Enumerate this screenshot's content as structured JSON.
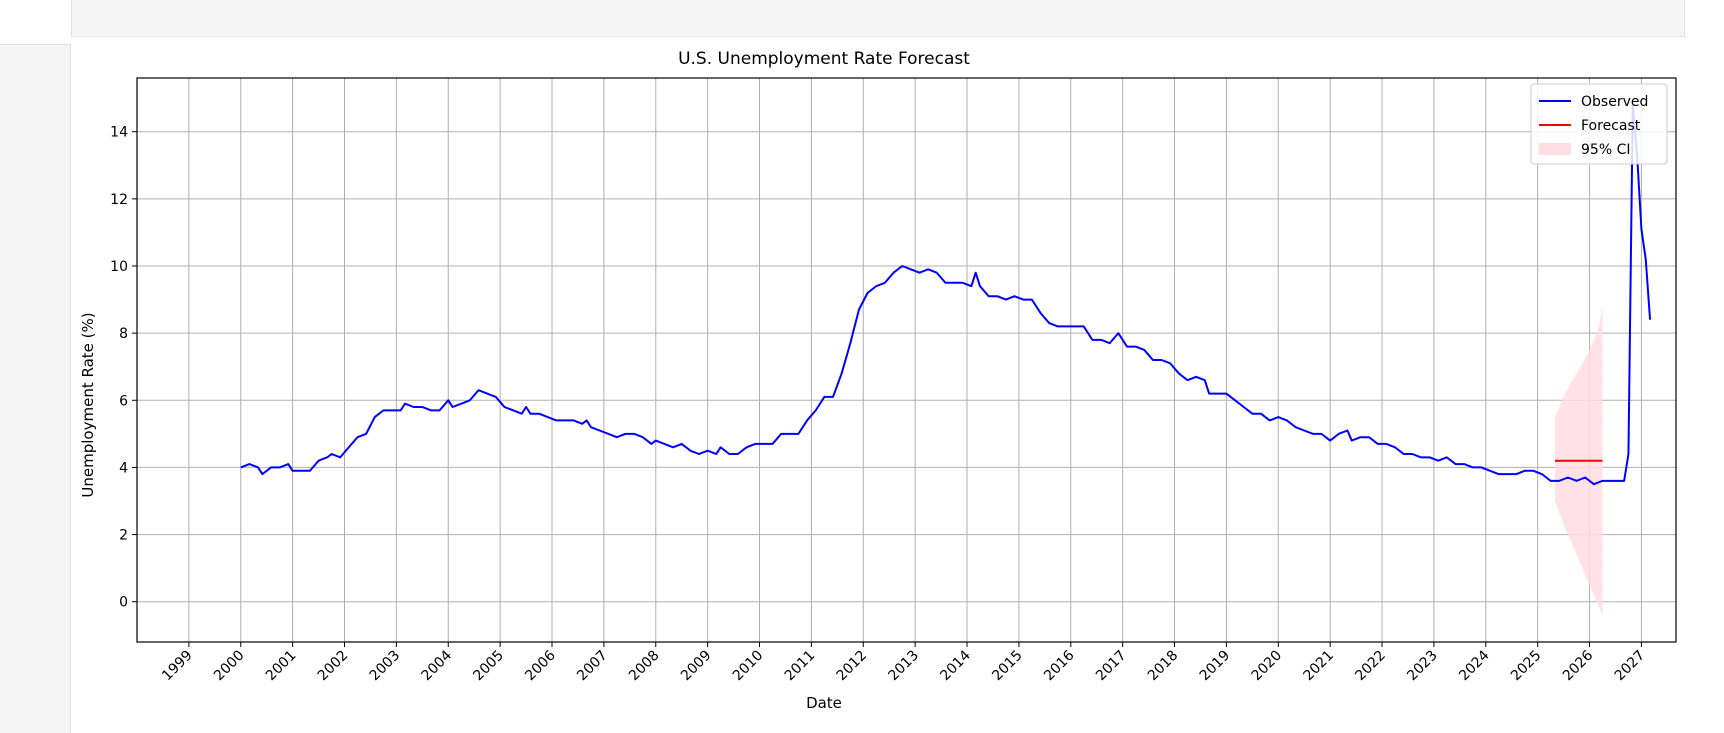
{
  "chart_data": {
    "type": "line",
    "title": "U.S. Unemployment Rate Forecast",
    "xlabel": "Date",
    "ylabel": "Unemployment Rate (%)",
    "xlim": [
      "1998-01",
      "2027-09"
    ],
    "ylim": [
      -1.2,
      15.6
    ],
    "x_ticks": [
      "1999",
      "2000",
      "2001",
      "2002",
      "2003",
      "2004",
      "2005",
      "2006",
      "2007",
      "2008",
      "2009",
      "2010",
      "2011",
      "2012",
      "2013",
      "2014",
      "2015",
      "2016",
      "2017",
      "2018",
      "2019",
      "2020",
      "2021",
      "2022",
      "2023",
      "2024",
      "2025",
      "2026",
      "2027"
    ],
    "y_ticks": [
      0,
      2,
      4,
      6,
      8,
      10,
      12,
      14
    ],
    "grid": true,
    "legend": "top-right",
    "series": [
      {
        "name": "Observed",
        "color": "#0000ff",
        "points": [
          [
            "2000-01",
            4.0
          ],
          [
            "2000-03",
            4.1
          ],
          [
            "2000-05",
            4.0
          ],
          [
            "2000-06",
            3.8
          ],
          [
            "2000-08",
            4.0
          ],
          [
            "2000-10",
            4.0
          ],
          [
            "2000-12",
            4.1
          ],
          [
            "2001-01",
            3.9
          ],
          [
            "2001-03",
            3.9
          ],
          [
            "2001-05",
            3.9
          ],
          [
            "2001-07",
            4.2
          ],
          [
            "2001-09",
            4.3
          ],
          [
            "2001-10",
            4.4
          ],
          [
            "2001-12",
            4.3
          ],
          [
            "2002-02",
            4.6
          ],
          [
            "2002-04",
            4.9
          ],
          [
            "2002-06",
            5.0
          ],
          [
            "2002-08",
            5.5
          ],
          [
            "2002-10",
            5.7
          ],
          [
            "2002-12",
            5.7
          ],
          [
            "2003-02",
            5.7
          ],
          [
            "2003-03",
            5.9
          ],
          [
            "2003-05",
            5.8
          ],
          [
            "2003-07",
            5.8
          ],
          [
            "2003-09",
            5.7
          ],
          [
            "2003-11",
            5.7
          ],
          [
            "2004-01",
            6.0
          ],
          [
            "2004-02",
            5.8
          ],
          [
            "2004-04",
            5.9
          ],
          [
            "2004-06",
            6.0
          ],
          [
            "2004-08",
            6.3
          ],
          [
            "2004-10",
            6.2
          ],
          [
            "2004-12",
            6.1
          ],
          [
            "2005-02",
            5.8
          ],
          [
            "2005-04",
            5.7
          ],
          [
            "2005-06",
            5.6
          ],
          [
            "2005-07",
            5.8
          ],
          [
            "2005-08",
            5.6
          ],
          [
            "2005-10",
            5.6
          ],
          [
            "2005-12",
            5.5
          ],
          [
            "2006-02",
            5.4
          ],
          [
            "2006-04",
            5.4
          ],
          [
            "2006-06",
            5.4
          ],
          [
            "2006-08",
            5.3
          ],
          [
            "2006-09",
            5.4
          ],
          [
            "2006-10",
            5.2
          ],
          [
            "2006-12",
            5.1
          ],
          [
            "2007-02",
            5.0
          ],
          [
            "2007-04",
            4.9
          ],
          [
            "2007-06",
            5.0
          ],
          [
            "2007-08",
            5.0
          ],
          [
            "2007-10",
            4.9
          ],
          [
            "2007-12",
            4.7
          ],
          [
            "2008-01",
            4.8
          ],
          [
            "2008-03",
            4.7
          ],
          [
            "2008-05",
            4.6
          ],
          [
            "2008-07",
            4.7
          ],
          [
            "2008-09",
            4.5
          ],
          [
            "2008-11",
            4.4
          ],
          [
            "2009-01",
            4.5
          ],
          [
            "2009-03",
            4.4
          ],
          [
            "2009-04",
            4.6
          ],
          [
            "2009-06",
            4.4
          ],
          [
            "2009-08",
            4.4
          ],
          [
            "2009-10",
            4.6
          ],
          [
            "2009-12",
            4.7
          ],
          [
            "2010-02",
            4.7
          ],
          [
            "2010-04",
            4.7
          ],
          [
            "2010-06",
            5.0
          ],
          [
            "2010-08",
            5.0
          ],
          [
            "2010-10",
            5.0
          ],
          [
            "2010-12",
            5.4
          ],
          [
            "2011-02",
            5.7
          ],
          [
            "2011-04",
            6.1
          ],
          [
            "2011-06",
            6.1
          ],
          [
            "2011-08",
            6.8
          ],
          [
            "2011-10",
            7.7
          ],
          [
            "2011-12",
            8.7
          ],
          [
            "2012-02",
            9.2
          ],
          [
            "2012-04",
            9.4
          ],
          [
            "2012-06",
            9.5
          ],
          [
            "2012-08",
            9.8
          ],
          [
            "2012-10",
            10.0
          ],
          [
            "2012-12",
            9.9
          ],
          [
            "2013-02",
            9.8
          ],
          [
            "2013-04",
            9.9
          ],
          [
            "2013-06",
            9.8
          ],
          [
            "2013-08",
            9.5
          ],
          [
            "2013-10",
            9.5
          ],
          [
            "2013-12",
            9.5
          ],
          [
            "2014-02",
            9.4
          ],
          [
            "2014-03",
            9.8
          ],
          [
            "2014-04",
            9.4
          ],
          [
            "2014-06",
            9.1
          ],
          [
            "2014-08",
            9.1
          ],
          [
            "2014-10",
            9.0
          ],
          [
            "2014-12",
            9.1
          ],
          [
            "2015-02",
            9.0
          ],
          [
            "2015-04",
            9.0
          ],
          [
            "2015-06",
            8.6
          ],
          [
            "2015-08",
            8.3
          ],
          [
            "2015-10",
            8.2
          ],
          [
            "2015-12",
            8.2
          ],
          [
            "2016-02",
            8.2
          ],
          [
            "2016-04",
            8.2
          ],
          [
            "2016-06",
            7.8
          ],
          [
            "2016-08",
            7.8
          ],
          [
            "2016-10",
            7.7
          ],
          [
            "2016-12",
            8.0
          ],
          [
            "2017-02",
            7.6
          ],
          [
            "2017-04",
            7.6
          ],
          [
            "2017-06",
            7.5
          ],
          [
            "2017-08",
            7.2
          ],
          [
            "2017-10",
            7.2
          ],
          [
            "2017-12",
            7.1
          ],
          [
            "2018-02",
            6.8
          ],
          [
            "2018-04",
            6.6
          ],
          [
            "2018-06",
            6.7
          ],
          [
            "2018-08",
            6.6
          ],
          [
            "2018-09",
            6.2
          ],
          [
            "2018-11",
            6.2
          ],
          [
            "2019-01",
            6.2
          ],
          [
            "2019-03",
            6.0
          ],
          [
            "2019-05",
            5.8
          ],
          [
            "2019-07",
            5.6
          ],
          [
            "2019-09",
            5.6
          ],
          [
            "2019-11",
            5.4
          ],
          [
            "2020-01",
            5.5
          ],
          [
            "2020-03",
            5.4
          ],
          [
            "2020-05",
            5.2
          ],
          [
            "2020-07",
            5.1
          ],
          [
            "2020-09",
            5.0
          ],
          [
            "2020-11",
            5.0
          ],
          [
            "2021-01",
            4.8
          ],
          [
            "2021-03",
            5.0
          ],
          [
            "2021-05",
            5.1
          ],
          [
            "2021-06",
            4.8
          ],
          [
            "2021-08",
            4.9
          ],
          [
            "2021-10",
            4.9
          ],
          [
            "2021-12",
            4.7
          ],
          [
            "2022-02",
            4.7
          ],
          [
            "2022-04",
            4.6
          ],
          [
            "2022-06",
            4.4
          ],
          [
            "2022-08",
            4.4
          ],
          [
            "2022-10",
            4.3
          ],
          [
            "2022-12",
            4.3
          ],
          [
            "2023-02",
            4.2
          ],
          [
            "2023-04",
            4.3
          ],
          [
            "2023-06",
            4.1
          ],
          [
            "2023-08",
            4.1
          ],
          [
            "2023-10",
            4.0
          ],
          [
            "2023-12",
            4.0
          ],
          [
            "2024-02",
            3.9
          ],
          [
            "2024-04",
            3.8
          ],
          [
            "2024-06",
            3.8
          ],
          [
            "2024-08",
            3.8
          ],
          [
            "2024-10",
            3.9
          ],
          [
            "2024-12",
            3.9
          ],
          [
            "2025-02",
            3.8
          ],
          [
            "2025-04",
            3.6
          ],
          [
            "2025-06",
            3.6
          ],
          [
            "2025-08",
            3.7
          ],
          [
            "2025-10",
            3.6
          ],
          [
            "2025-12",
            3.7
          ],
          [
            "2026-02",
            3.5
          ],
          [
            "2026-04",
            3.6
          ],
          [
            "2026-06",
            3.6
          ],
          [
            "2026-08",
            3.6
          ],
          [
            "2026-09",
            3.6
          ],
          [
            "2026-10",
            4.4
          ],
          [
            "2026-11",
            14.8
          ],
          [
            "2026-12",
            13.3
          ],
          [
            "2027-01",
            11.1
          ],
          [
            "2027-02",
            10.2
          ],
          [
            "2027-03",
            8.4
          ]
        ]
      },
      {
        "name": "Forecast",
        "color": "#ff0000",
        "points": [
          [
            "2025-05",
            4.2
          ],
          [
            "2026-04",
            4.2
          ]
        ]
      }
    ],
    "ci": {
      "name": "95% CI",
      "color": "#ffdde3",
      "upper": [
        [
          "2025-05",
          5.5
        ],
        [
          "2025-07",
          6.1
        ],
        [
          "2025-09",
          6.6
        ],
        [
          "2025-11",
          7.0
        ],
        [
          "2026-01",
          7.5
        ],
        [
          "2026-03",
          8.1
        ],
        [
          "2026-04",
          8.8
        ]
      ],
      "lower": [
        [
          "2025-05",
          3.0
        ],
        [
          "2025-07",
          2.3
        ],
        [
          "2025-09",
          1.7
        ],
        [
          "2025-11",
          1.1
        ],
        [
          "2026-01",
          0.5
        ],
        [
          "2026-03",
          -0.1
        ],
        [
          "2026-04",
          -0.4
        ]
      ]
    }
  }
}
